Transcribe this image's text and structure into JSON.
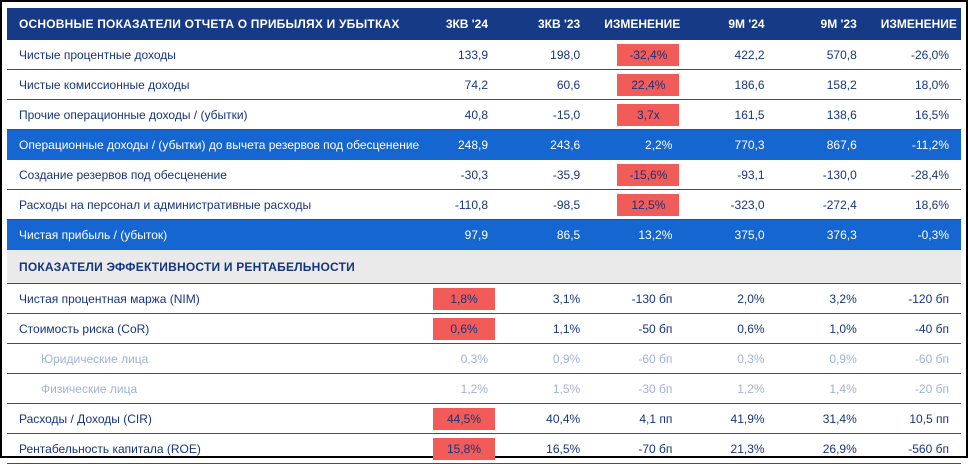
{
  "colors": {
    "header_bg": "#173a87",
    "row_highlight": "#1566d0",
    "red": "#f15b58",
    "section_bg": "#eaeaea",
    "text": "#16357e",
    "muted": "#9fb2d8",
    "border": "#2c4da1",
    "bottom_bar": "#173a87"
  },
  "table": {
    "title": "ОСНОВНЫЕ ПОКАЗАТЕЛИ ОТЧЕТА О ПРИБЫЛЯХ И УБЫТКАХ",
    "columns": [
      "3КВ '24",
      "3КВ '23",
      "ИЗМЕНЕНИЕ",
      "9М '24",
      "9М '23",
      "ИЗМЕНЕНИЕ"
    ],
    "rows": [
      {
        "label": "Чистые процентные доходы",
        "values": [
          "133,9",
          "198,0",
          "-32,4%",
          "422,2",
          "570,8",
          "-26,0%"
        ],
        "type": "normal",
        "red": [
          2
        ]
      },
      {
        "label": "Чистые комиссионные доходы",
        "values": [
          "74,2",
          "60,6",
          "22,4%",
          "186,6",
          "158,2",
          "18,0%"
        ],
        "type": "normal",
        "red": [
          2
        ]
      },
      {
        "label": "Прочие операционные доходы / (убытки)",
        "values": [
          "40,8",
          "-15,0",
          "3,7х",
          "161,5",
          "138,6",
          "16,5%"
        ],
        "type": "normal",
        "red": [
          2
        ]
      },
      {
        "label": "Операционные доходы / (убытки) до вычета резервов под обесценение",
        "values": [
          "248,9",
          "243,6",
          "2,2%",
          "770,3",
          "867,6",
          "-11,2%"
        ],
        "type": "highlight",
        "red": []
      },
      {
        "label": "Создание резервов под обесценение",
        "values": [
          "-30,3",
          "-35,9",
          "-15,6%",
          "-93,1",
          "-130,0",
          "-28,4%"
        ],
        "type": "normal",
        "red": [
          2
        ]
      },
      {
        "label": "Расходы на персонал и административные расходы",
        "values": [
          "-110,8",
          "-98,5",
          "12,5%",
          "-323,0",
          "-272,4",
          "18,6%"
        ],
        "type": "normal",
        "red": [
          2
        ]
      },
      {
        "label": "Чистая прибыль / (убыток)",
        "values": [
          "97,9",
          "86,5",
          "13,2%",
          "375,0",
          "376,3",
          "-0,3%"
        ],
        "type": "highlight",
        "red": []
      },
      {
        "label": "ПОКАЗАТЕЛИ ЭФФЕКТИВНОСТИ И РЕНТАБЕЛЬНОСТИ",
        "values": [],
        "type": "section",
        "red": []
      },
      {
        "label": "Чистая процентная маржа (NIM)",
        "values": [
          "1,8%",
          "3,1%",
          "-130 бп",
          "2,0%",
          "3,2%",
          "-120 бп"
        ],
        "type": "normal",
        "red": [
          0
        ]
      },
      {
        "label": "Стоимость риска (CoR)",
        "values": [
          "0,6%",
          "1,1%",
          "-50 бп",
          "0,6%",
          "1,0%",
          "-40 бп"
        ],
        "type": "normal",
        "red": [
          0
        ]
      },
      {
        "label": "Юридические лица",
        "values": [
          "0,3%",
          "0,9%",
          "-60 бп",
          "0,3%",
          "0,9%",
          "-60 бп"
        ],
        "type": "muted",
        "red": []
      },
      {
        "label": "Физические лица",
        "values": [
          "1,2%",
          "1,5%",
          "-30 бп",
          "1,2%",
          "1,4%",
          "-20 бп"
        ],
        "type": "muted",
        "red": []
      },
      {
        "label": "Расходы / Доходы (CIR)",
        "values": [
          "44,5%",
          "40,4%",
          "4,1 пп",
          "41,9%",
          "31,4%",
          "10,5 пп"
        ],
        "type": "normal",
        "red": [
          0
        ]
      },
      {
        "label": "Рентабельность капитала (ROE)",
        "values": [
          "15,8%",
          "16,5%",
          "-70 бп",
          "21,3%",
          "26,9%",
          "-560 бп"
        ],
        "type": "normal",
        "red": [
          0
        ]
      }
    ]
  }
}
